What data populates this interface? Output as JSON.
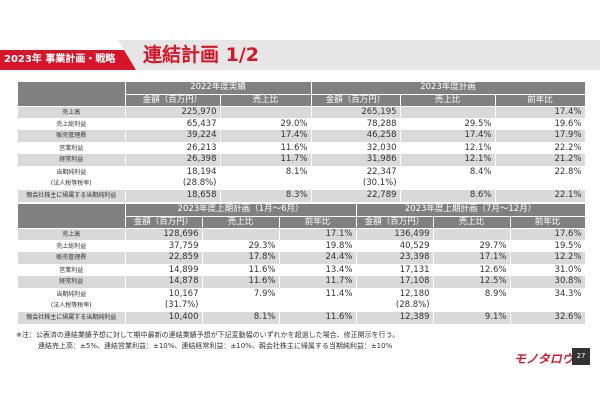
{
  "header": {
    "section_tag": "2023年 事業計画・戦略",
    "title": "連結計画 1/2"
  },
  "table1": {
    "group_headers": [
      "2022年度実績",
      "2023年度計画"
    ],
    "col_headers": [
      "金額（百万円）",
      "売上比",
      "金額（百万円）",
      "売上比",
      "前年比"
    ],
    "rows": [
      {
        "label": "売上高",
        "v": [
          "225,970",
          "",
          "265,195",
          "",
          "17.4%"
        ]
      },
      {
        "label": "売上総利益",
        "v": [
          "65,437",
          "29.0%",
          "78,288",
          "29.5%",
          "19.6%"
        ]
      },
      {
        "label": "販売管理費",
        "v": [
          "39,224",
          "17.4%",
          "46,258",
          "17.4%",
          "17.9%"
        ]
      },
      {
        "label": "営業利益",
        "v": [
          "26,213",
          "11.6%",
          "32,030",
          "12.1%",
          "22.2%"
        ]
      },
      {
        "label": "経常利益",
        "v": [
          "26,398",
          "11.7%",
          "31,986",
          "12.1%",
          "21.2%"
        ]
      },
      {
        "label": "当期純利益",
        "sub": "(法人税等税率)",
        "v": [
          "18,194",
          "8.1%",
          "22,347",
          "8.4%",
          "22.8%"
        ],
        "subv": [
          "(28.8%)",
          "(30.1%)"
        ]
      },
      {
        "label": "親会社株主に帰属する当期純利益",
        "v": [
          "18,658",
          "8.3%",
          "22,789",
          "8.6%",
          "22.1%"
        ]
      }
    ]
  },
  "table2": {
    "group_headers": [
      "2023年度上期計画（1月～6月）",
      "2023年度上期計画（7月～12月）"
    ],
    "col_headers": [
      "金額（百万円）",
      "売上比",
      "前年比",
      "金額（百万円）",
      "売上比",
      "前年比"
    ],
    "rows": [
      {
        "label": "売上高",
        "v": [
          "128,696",
          "",
          "17.1%",
          "136,499",
          "",
          "17.6%"
        ]
      },
      {
        "label": "売上総利益",
        "v": [
          "37,759",
          "29.3%",
          "19.8%",
          "40,529",
          "29.7%",
          "19.5%"
        ]
      },
      {
        "label": "販売管理費",
        "v": [
          "22,859",
          "17.8%",
          "24.4%",
          "23,398",
          "17.1%",
          "12.2%"
        ]
      },
      {
        "label": "営業利益",
        "v": [
          "14,899",
          "11.6%",
          "13.4%",
          "17,131",
          "12.6%",
          "31.0%"
        ]
      },
      {
        "label": "経常利益",
        "v": [
          "14,878",
          "11.6%",
          "11.7%",
          "17,108",
          "12.5%",
          "30.8%"
        ]
      },
      {
        "label": "当期純利益",
        "sub": "(法人税等税率)",
        "v": [
          "10,167",
          "7.9%",
          "11.4%",
          "12,180",
          "8.9%",
          "34.3%"
        ],
        "subv": [
          "(31.7%)",
          "(28.8%)"
        ]
      },
      {
        "label": "親会社株主に帰属する当期純利益",
        "v": [
          "10,400",
          "8.1%",
          "11.6%",
          "12,389",
          "9.1%",
          "32.6%"
        ]
      }
    ]
  },
  "notes": [
    "※注：公表済の連結業績予想に対して期中最新の連結業績予想が下記変動幅のいずれかを超過した場合、修正開示を行う。",
    "連結売上高：±5%、連結営業利益：±10%、連結経常利益：±10%、親会社株主に帰属する当期純利益：±10%"
  ],
  "footer": {
    "logo": "モノタロウ",
    "page": "27"
  },
  "colors": {
    "accent": "#d7152a",
    "header_gray": "#808080",
    "band_gray": "#d9d9d9"
  }
}
